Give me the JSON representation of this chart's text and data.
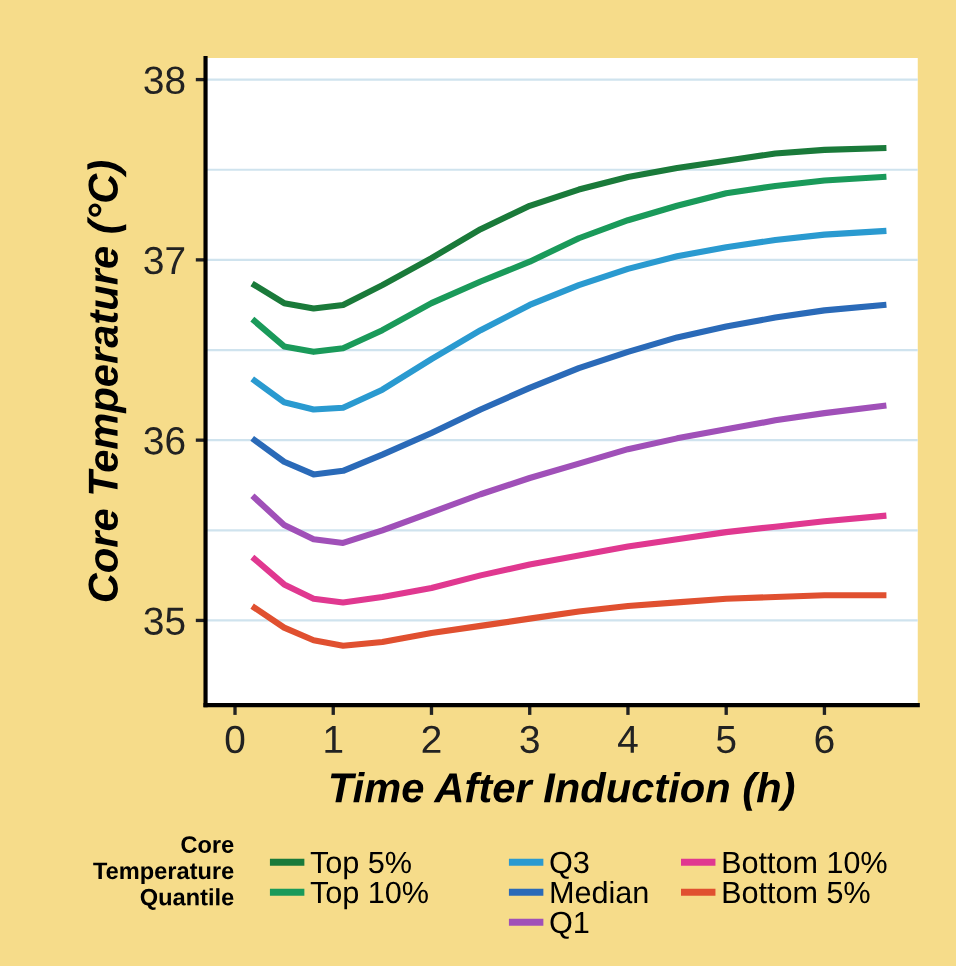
{
  "chart_data": {
    "type": "line",
    "xlabel": "Time After Induction (h)",
    "ylabel": "Core Temperature (°C)",
    "legend_title": "Core\nTemperature\nQuantile",
    "x": [
      0.2,
      0.5,
      0.8,
      1.1,
      1.5,
      2,
      2.5,
      3,
      3.5,
      4,
      4.5,
      5,
      5.5,
      6,
      6.6
    ],
    "series": [
      {
        "name": "Top 5%",
        "color": "#1a7a3a",
        "values": [
          36.86,
          36.76,
          36.73,
          36.75,
          36.86,
          37.01,
          37.17,
          37.3,
          37.39,
          37.46,
          37.51,
          37.55,
          37.59,
          37.61,
          37.62
        ]
      },
      {
        "name": "Top 10%",
        "color": "#1a9a5a",
        "values": [
          36.66,
          36.52,
          36.49,
          36.51,
          36.61,
          36.76,
          36.88,
          36.99,
          37.12,
          37.22,
          37.3,
          37.37,
          37.41,
          37.44,
          37.46
        ]
      },
      {
        "name": "Q3",
        "color": "#2a9ad0",
        "values": [
          36.33,
          36.21,
          36.17,
          36.18,
          36.28,
          36.45,
          36.61,
          36.75,
          36.86,
          36.95,
          37.02,
          37.07,
          37.11,
          37.14,
          37.16
        ]
      },
      {
        "name": "Median",
        "color": "#2a6ab8",
        "values": [
          36.0,
          35.88,
          35.81,
          35.83,
          35.92,
          36.04,
          36.17,
          36.29,
          36.4,
          36.49,
          36.57,
          36.63,
          36.68,
          36.72,
          36.75
        ]
      },
      {
        "name": "Q1",
        "color": "#a050b8",
        "values": [
          35.68,
          35.53,
          35.45,
          35.43,
          35.5,
          35.6,
          35.7,
          35.79,
          35.87,
          35.95,
          36.01,
          36.06,
          36.11,
          36.15,
          36.19
        ]
      },
      {
        "name": "Bottom 10%",
        "color": "#e03890",
        "values": [
          35.34,
          35.2,
          35.12,
          35.1,
          35.13,
          35.18,
          35.25,
          35.31,
          35.36,
          35.41,
          35.45,
          35.49,
          35.52,
          35.55,
          35.58
        ]
      },
      {
        "name": "Bottom 5%",
        "color": "#e05030",
        "values": [
          35.07,
          34.96,
          34.89,
          34.86,
          34.88,
          34.93,
          34.97,
          35.01,
          35.05,
          35.08,
          35.1,
          35.12,
          35.13,
          35.14,
          35.14
        ]
      }
    ],
    "xlim": [
      -0.3,
      6.95
    ],
    "xticks": [
      0,
      1,
      2,
      3,
      4,
      5,
      6
    ],
    "ylim": [
      34.53,
      38.12
    ],
    "yticks": [
      35,
      {
        "value": 35.5,
        "label": null
      },
      36,
      {
        "value": 36.5,
        "label": null
      },
      37,
      {
        "value": 37.5,
        "label": null
      },
      38
    ],
    "grid": "y",
    "legend": "bottom",
    "marker": "none",
    "line_style": "solid"
  }
}
